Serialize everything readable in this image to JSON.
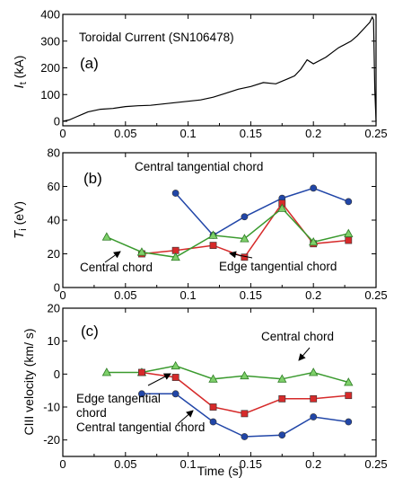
{
  "chart_data": [
    {
      "id": "a",
      "type": "line",
      "panel_label": "(a)",
      "annotation": "Toroidal  Current  (SN106478)",
      "ylabel_symbol": "I",
      "ylabel_sub": "t",
      "ylabel_unit": "(kA)",
      "xlim": [
        0,
        0.25
      ],
      "ylim": [
        0,
        400
      ],
      "xticks": [
        "0",
        "0.05",
        "0.1",
        "0.15",
        "0.2",
        "0.25"
      ],
      "yticks": [
        "0",
        "100",
        "200",
        "300",
        "400"
      ],
      "series": [
        {
          "color": "#000000",
          "x": [
            0.0,
            0.005,
            0.01,
            0.015,
            0.02,
            0.03,
            0.04,
            0.05,
            0.06,
            0.07,
            0.08,
            0.09,
            0.1,
            0.11,
            0.12,
            0.13,
            0.14,
            0.15,
            0.16,
            0.17,
            0.18,
            0.185,
            0.19,
            0.195,
            0.2,
            0.21,
            0.22,
            0.23,
            0.235,
            0.24,
            0.245,
            0.247,
            0.248,
            0.249,
            0.25
          ],
          "y": [
            0,
            5,
            15,
            25,
            35,
            45,
            48,
            55,
            58,
            60,
            65,
            70,
            75,
            80,
            90,
            105,
            120,
            130,
            145,
            140,
            160,
            170,
            195,
            230,
            215,
            240,
            275,
            300,
            320,
            345,
            370,
            390,
            380,
            120,
            0
          ]
        }
      ]
    },
    {
      "id": "b",
      "type": "line",
      "panel_label": "(b)",
      "ylabel_symbol": "T",
      "ylabel_sub": "i",
      "ylabel_unit": "(eV)",
      "xlim": [
        0,
        0.25
      ],
      "ylim": [
        0,
        80
      ],
      "xticks": [
        "0",
        "0.05",
        "0.1",
        "0.15",
        "0.2",
        "0.25"
      ],
      "yticks": [
        "0",
        "20",
        "40",
        "60",
        "80"
      ],
      "annotations": [
        "Central  tangential  chord",
        "Central  chord",
        "Edge  tangential  chord"
      ],
      "series": [
        {
          "label": "Central  tangential  chord",
          "color": "#2146a8",
          "marker": "circle",
          "x": [
            0.09,
            0.12,
            0.145,
            0.175,
            0.2,
            0.228
          ],
          "y": [
            56,
            31,
            42,
            53,
            59,
            51
          ]
        },
        {
          "label": "Edge  tangential  chord",
          "color": "#d62a2a",
          "marker": "square",
          "x": [
            0.063,
            0.09,
            0.12,
            0.145,
            0.175,
            0.2,
            0.228
          ],
          "y": [
            20,
            22,
            25,
            18,
            50,
            26,
            28
          ]
        },
        {
          "label": "Central  chord",
          "color": "#3a9a2e",
          "marker": "triangle",
          "x": [
            0.035,
            0.063,
            0.09,
            0.12,
            0.145,
            0.175,
            0.2,
            0.228
          ],
          "y": [
            30,
            21,
            18,
            31,
            29,
            47,
            27,
            32
          ]
        }
      ]
    },
    {
      "id": "c",
      "type": "line",
      "panel_label": "(c)",
      "ylabel": "CIII  velocity  (km/ s)",
      "xlabel": "Time  (s)",
      "xlim": [
        0,
        0.25
      ],
      "ylim": [
        -25,
        20
      ],
      "xticks": [
        "0",
        "0.05",
        "0.1",
        "0.15",
        "0.2",
        "0.25"
      ],
      "yticks": [
        "-20",
        "-10",
        "0",
        "10",
        "20"
      ],
      "annotations": [
        "Central  chord",
        "Edge  tangential",
        "chord",
        "Central  tangential  chord"
      ],
      "series": [
        {
          "label": "Central  chord",
          "color": "#3a9a2e",
          "marker": "triangle",
          "x": [
            0.035,
            0.063,
            0.09,
            0.12,
            0.145,
            0.175,
            0.2,
            0.228
          ],
          "y": [
            0.5,
            0.5,
            2.5,
            -1.5,
            -0.5,
            -1.5,
            0.5,
            -2.5
          ]
        },
        {
          "label": "Edge  tangential  chord",
          "color": "#d62a2a",
          "marker": "square",
          "x": [
            0.063,
            0.09,
            0.12,
            0.145,
            0.175,
            0.2,
            0.228
          ],
          "y": [
            0.5,
            -1,
            -10,
            -12,
            -7.5,
            -7.5,
            -6.5
          ]
        },
        {
          "label": "Central  tangential  chord",
          "color": "#2146a8",
          "marker": "circle",
          "x": [
            0.063,
            0.09,
            0.12,
            0.145,
            0.175,
            0.2,
            0.228
          ],
          "y": [
            -6,
            -6,
            -14.5,
            -19,
            -18.5,
            -13,
            -14.5
          ]
        }
      ]
    }
  ]
}
